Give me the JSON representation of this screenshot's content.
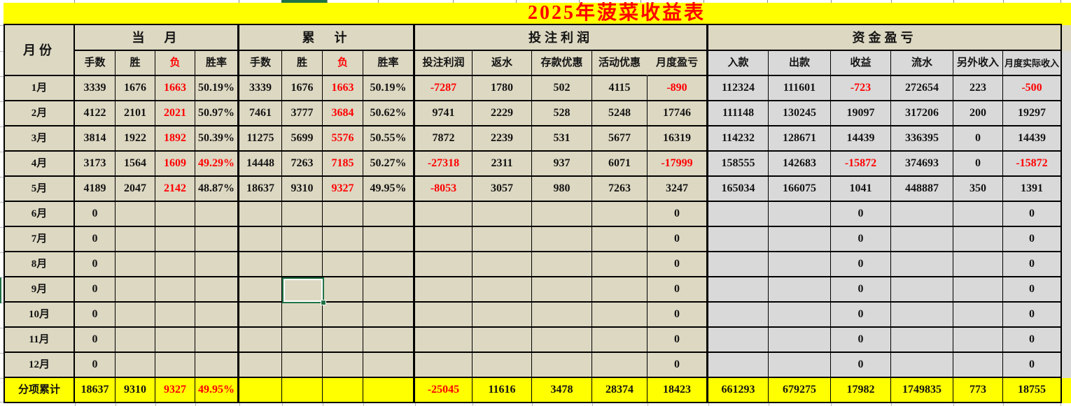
{
  "title": "2025年菠菜收益表",
  "header": {
    "month_label": "月份",
    "groups": [
      {
        "label": "当　月",
        "cols": [
          {
            "v": "手数"
          },
          {
            "v": "胜"
          },
          {
            "v": "负",
            "red": true
          },
          {
            "v": "胜率"
          }
        ]
      },
      {
        "label": "累　计",
        "cols": [
          {
            "v": "手数"
          },
          {
            "v": "胜"
          },
          {
            "v": "负",
            "red": true
          },
          {
            "v": "胜率"
          }
        ]
      },
      {
        "label": "投注利润",
        "cols": [
          {
            "v": "投注利润"
          },
          {
            "v": "返水"
          },
          {
            "v": "存款优惠"
          },
          {
            "v": "活动优惠"
          },
          {
            "v": "月度盈亏"
          }
        ]
      },
      {
        "label": "资金盈亏",
        "cols": [
          {
            "v": "入款"
          },
          {
            "v": "出款"
          },
          {
            "v": "收益"
          },
          {
            "v": "流水"
          },
          {
            "v": "另外收入"
          },
          {
            "v": "月度实际收入"
          }
        ]
      }
    ]
  },
  "rows": [
    {
      "label": "1月",
      "cells": [
        {
          "v": "3339"
        },
        {
          "v": "1676"
        },
        {
          "v": "1663",
          "red": true
        },
        {
          "v": "50.19%"
        },
        {
          "v": "3339"
        },
        {
          "v": "1676"
        },
        {
          "v": "1663",
          "red": true
        },
        {
          "v": "50.19%"
        },
        {
          "v": "-7287",
          "red": true
        },
        {
          "v": "1780"
        },
        {
          "v": "502"
        },
        {
          "v": "4115"
        },
        {
          "v": "-890",
          "red": true
        },
        {
          "v": "112324"
        },
        {
          "v": "111601"
        },
        {
          "v": "-723",
          "red": true
        },
        {
          "v": "272654"
        },
        {
          "v": "223"
        },
        {
          "v": "-500",
          "red": true
        }
      ]
    },
    {
      "label": "2月",
      "cells": [
        {
          "v": "4122"
        },
        {
          "v": "2101"
        },
        {
          "v": "2021",
          "red": true
        },
        {
          "v": "50.97%"
        },
        {
          "v": "7461"
        },
        {
          "v": "3777"
        },
        {
          "v": "3684",
          "red": true
        },
        {
          "v": "50.62%"
        },
        {
          "v": "9741"
        },
        {
          "v": "2229"
        },
        {
          "v": "528"
        },
        {
          "v": "5248"
        },
        {
          "v": "17746"
        },
        {
          "v": "111148"
        },
        {
          "v": "130245"
        },
        {
          "v": "19097"
        },
        {
          "v": "317206"
        },
        {
          "v": "200"
        },
        {
          "v": "19297"
        }
      ]
    },
    {
      "label": "3月",
      "cells": [
        {
          "v": "3814"
        },
        {
          "v": "1922"
        },
        {
          "v": "1892",
          "red": true
        },
        {
          "v": "50.39%"
        },
        {
          "v": "11275"
        },
        {
          "v": "5699"
        },
        {
          "v": "5576",
          "red": true
        },
        {
          "v": "50.55%"
        },
        {
          "v": "7872"
        },
        {
          "v": "2239"
        },
        {
          "v": "531"
        },
        {
          "v": "5677"
        },
        {
          "v": "16319"
        },
        {
          "v": "114232"
        },
        {
          "v": "128671"
        },
        {
          "v": "14439"
        },
        {
          "v": "336395"
        },
        {
          "v": "0"
        },
        {
          "v": "14439"
        }
      ]
    },
    {
      "label": "4月",
      "cells": [
        {
          "v": "3173"
        },
        {
          "v": "1564"
        },
        {
          "v": "1609",
          "red": true
        },
        {
          "v": "49.29%",
          "red": true
        },
        {
          "v": "14448"
        },
        {
          "v": "7263"
        },
        {
          "v": "7185",
          "red": true
        },
        {
          "v": "50.27%"
        },
        {
          "v": "-27318",
          "red": true
        },
        {
          "v": "2311"
        },
        {
          "v": "937"
        },
        {
          "v": "6071"
        },
        {
          "v": "-17999",
          "red": true
        },
        {
          "v": "158555"
        },
        {
          "v": "142683"
        },
        {
          "v": "-15872",
          "red": true
        },
        {
          "v": "374693"
        },
        {
          "v": "0"
        },
        {
          "v": "-15872",
          "red": true
        }
      ]
    },
    {
      "label": "5月",
      "cells": [
        {
          "v": "4189"
        },
        {
          "v": "2047"
        },
        {
          "v": "2142",
          "red": true
        },
        {
          "v": "48.87%"
        },
        {
          "v": "18637"
        },
        {
          "v": "9310"
        },
        {
          "v": "9327",
          "red": true
        },
        {
          "v": "49.95%"
        },
        {
          "v": "-8053",
          "red": true
        },
        {
          "v": "3057"
        },
        {
          "v": "980"
        },
        {
          "v": "7263"
        },
        {
          "v": "3247"
        },
        {
          "v": "165034"
        },
        {
          "v": "166075"
        },
        {
          "v": "1041"
        },
        {
          "v": "448887"
        },
        {
          "v": "350"
        },
        {
          "v": "1391"
        }
      ]
    },
    {
      "label": "6月",
      "cells": [
        {
          "v": "0"
        },
        {},
        {},
        {},
        {},
        {},
        {},
        {},
        {},
        {},
        {},
        {},
        {
          "v": "0"
        },
        {},
        {},
        {
          "v": "0"
        },
        {},
        {},
        {
          "v": "0"
        }
      ]
    },
    {
      "label": "7月",
      "cells": [
        {
          "v": "0"
        },
        {},
        {},
        {},
        {},
        {},
        {},
        {},
        {},
        {},
        {},
        {},
        {
          "v": "0"
        },
        {},
        {},
        {
          "v": "0"
        },
        {},
        {},
        {
          "v": "0"
        }
      ]
    },
    {
      "label": "8月",
      "cells": [
        {
          "v": "0"
        },
        {},
        {},
        {},
        {},
        {},
        {},
        {},
        {},
        {},
        {},
        {},
        {
          "v": "0"
        },
        {},
        {},
        {
          "v": "0"
        },
        {},
        {},
        {
          "v": "0"
        }
      ]
    },
    {
      "label": "9月",
      "cells": [
        {
          "v": "0"
        },
        {},
        {},
        {},
        {},
        {},
        {},
        {},
        {},
        {},
        {},
        {},
        {
          "v": "0"
        },
        {},
        {},
        {
          "v": "0"
        },
        {},
        {},
        {
          "v": "0"
        }
      ]
    },
    {
      "label": "10月",
      "cells": [
        {
          "v": "0"
        },
        {},
        {},
        {},
        {},
        {},
        {},
        {},
        {},
        {},
        {},
        {},
        {
          "v": "0"
        },
        {},
        {},
        {
          "v": "0"
        },
        {},
        {},
        {
          "v": "0"
        }
      ]
    },
    {
      "label": "11月",
      "cells": [
        {
          "v": "0"
        },
        {},
        {},
        {},
        {},
        {},
        {},
        {},
        {},
        {},
        {},
        {},
        {
          "v": "0"
        },
        {},
        {},
        {
          "v": "0"
        },
        {},
        {},
        {
          "v": "0"
        }
      ]
    },
    {
      "label": "12月",
      "cells": [
        {
          "v": "0"
        },
        {},
        {},
        {},
        {},
        {},
        {},
        {},
        {},
        {},
        {},
        {},
        {
          "v": "0"
        },
        {},
        {},
        {
          "v": "0"
        },
        {},
        {},
        {
          "v": "0"
        }
      ]
    }
  ],
  "total": {
    "label": "分项累计",
    "cells": [
      {
        "v": "18637"
      },
      {
        "v": "9310"
      },
      {
        "v": "9327",
        "red": true
      },
      {
        "v": "49.95%",
        "red": true
      },
      {},
      {},
      {},
      {},
      {
        "v": "-25045",
        "red": true
      },
      {
        "v": "11616"
      },
      {
        "v": "3478"
      },
      {
        "v": "28374"
      },
      {
        "v": "18423"
      },
      {
        "v": "661293"
      },
      {
        "v": "679275"
      },
      {
        "v": "17982"
      },
      {
        "v": "1749835"
      },
      {
        "v": "773"
      },
      {
        "v": "18755"
      }
    ]
  },
  "selection": {
    "row": "9月",
    "column_group": "累计",
    "column": "胜"
  },
  "colors": {
    "title_text": "#fe0000",
    "negative_text": "#fe0000",
    "band_yellow": "#ffff00",
    "cell_tan": "#ddd8c2",
    "cell_gray": "#d9d9d9",
    "selection_green": "#217346",
    "grid_black": "#000000"
  }
}
